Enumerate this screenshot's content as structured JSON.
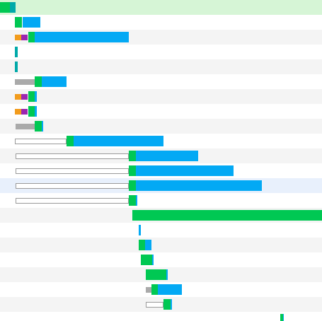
{
  "colors": {
    "first_row": "#d6f5d6",
    "row_alt": "#f4f4f4",
    "row_highlight": "#e8f0fc",
    "gridline": "#dddddd",
    "blocked": "#aaaaaa",
    "queued_outline": "#9a9a9a",
    "dns": "#f29c1d",
    "connect": "#9c27b0",
    "ssl": "#00a9a9",
    "wait": "#00c853",
    "receive": "#03a9f4"
  },
  "timeline": {
    "total_rows": 22,
    "rows": [
      {
        "segments": [
          [
            "wait",
            0,
            0.03
          ],
          [
            "ssl",
            0.03,
            0.048
          ]
        ]
      },
      {
        "segments": [
          [
            "wait",
            0.047,
            0.07
          ],
          [
            "receive",
            0.07,
            0.125
          ]
        ]
      },
      {
        "segments": [
          [
            "dns",
            0.047,
            0.067
          ],
          [
            "connect",
            0.067,
            0.087
          ],
          [
            "wait",
            0.087,
            0.107
          ],
          [
            "receive",
            0.107,
            0.4
          ]
        ]
      },
      {
        "segments": [
          [
            "ssl",
            0.046,
            0.055
          ]
        ]
      },
      {
        "segments": [
          [
            "ssl",
            0.046,
            0.055
          ]
        ]
      },
      {
        "segments": [
          [
            "blocked",
            0.046,
            0.108
          ],
          [
            "wait",
            0.108,
            0.13
          ],
          [
            "receive",
            0.13,
            0.206
          ]
        ]
      },
      {
        "segments": [
          [
            "dns",
            0.047,
            0.067
          ],
          [
            "connect",
            0.067,
            0.087
          ],
          [
            "wait",
            0.087,
            0.108
          ],
          [
            "receive",
            0.108,
            0.114
          ]
        ]
      },
      {
        "segments": [
          [
            "dns",
            0.047,
            0.067
          ],
          [
            "connect",
            0.067,
            0.087
          ],
          [
            "wait",
            0.087,
            0.108
          ],
          [
            "receive",
            0.108,
            0.114
          ]
        ]
      },
      {
        "segments": [
          [
            "blocked",
            0.048,
            0.108
          ],
          [
            "wait",
            0.108,
            0.13
          ],
          [
            "receive",
            0.13,
            0.134
          ]
        ]
      },
      {
        "segments": [
          [
            "outline",
            0.046,
            0.207
          ],
          [
            "wait",
            0.207,
            0.229
          ],
          [
            "receive",
            0.229,
            0.508
          ]
        ]
      },
      {
        "segments": [
          [
            "outline",
            0.048,
            0.4
          ],
          [
            "wait",
            0.4,
            0.422
          ],
          [
            "receive",
            0.422,
            0.615
          ]
        ]
      },
      {
        "segments": [
          [
            "outline",
            0.048,
            0.4
          ],
          [
            "wait",
            0.4,
            0.422
          ],
          [
            "receive",
            0.422,
            0.725
          ]
        ]
      },
      {
        "segments": [
          [
            "outline",
            0.048,
            0.4
          ],
          [
            "wait",
            0.4,
            0.422
          ],
          [
            "receive",
            0.422,
            0.813
          ]
        ],
        "highlight": true
      },
      {
        "segments": [
          [
            "outline",
            0.048,
            0.4
          ],
          [
            "wait",
            0.4,
            0.422
          ],
          [
            "receive",
            0.422,
            0.426
          ]
        ]
      },
      {
        "segments": [
          [
            "wait",
            0.411,
            1.0
          ]
        ]
      },
      {
        "segments": [
          [
            "receive",
            0.43,
            0.437
          ]
        ]
      },
      {
        "segments": [
          [
            "wait",
            0.43,
            0.451
          ],
          [
            "receive",
            0.451,
            0.47
          ]
        ]
      },
      {
        "segments": [
          [
            "wait",
            0.437,
            0.473
          ],
          [
            "receive",
            0.473,
            0.477
          ]
        ]
      },
      {
        "segments": [
          [
            "wait",
            0.453,
            0.516
          ],
          [
            "receive",
            0.516,
            0.521
          ]
        ]
      },
      {
        "segments": [
          [
            "blocked",
            0.453,
            0.47
          ],
          [
            "wait",
            0.47,
            0.49
          ],
          [
            "receive",
            0.49,
            0.565
          ]
        ]
      },
      {
        "segments": [
          [
            "outline",
            0.453,
            0.508
          ],
          [
            "wait",
            0.508,
            0.529
          ],
          [
            "receive",
            0.529,
            0.534
          ]
        ]
      },
      {
        "segments": [
          [
            "wait",
            0.87,
            0.879
          ],
          [
            "receive",
            0.879,
            0.881
          ]
        ]
      }
    ]
  }
}
